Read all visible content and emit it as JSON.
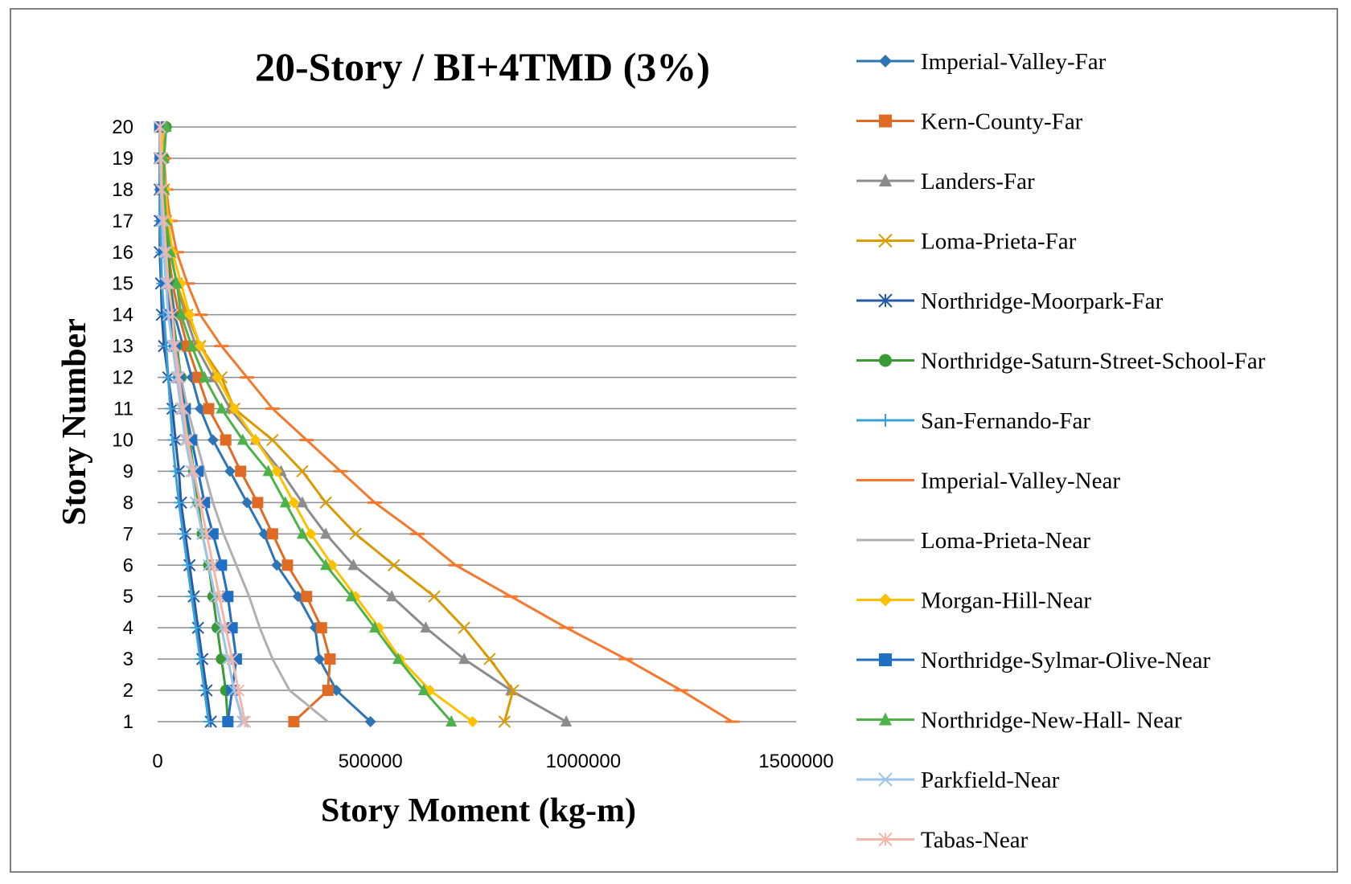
{
  "chart_data": {
    "type": "line",
    "title": "20-Story / BI+4TMD  (3%)",
    "xlabel": "Story Moment (kg-m)",
    "ylabel": "Story Number",
    "xlim": [
      0,
      1500000
    ],
    "ylim": [
      1,
      20
    ],
    "xticks": [
      0,
      500000,
      1000000,
      1500000
    ],
    "xtick_labels": [
      "0",
      "500000",
      "1000000",
      "1500000"
    ],
    "yticks": [
      1,
      2,
      3,
      4,
      5,
      6,
      7,
      8,
      9,
      10,
      11,
      12,
      13,
      14,
      15,
      16,
      17,
      18,
      19,
      20
    ],
    "ytick_labels": [
      "1",
      "2",
      "3",
      "4",
      "5",
      "6",
      "7",
      "8",
      "9",
      "10",
      "11",
      "12",
      "13",
      "14",
      "15",
      "16",
      "17",
      "18",
      "19",
      "20"
    ],
    "grid": "horizontal",
    "legend_position": "right",
    "stories": [
      1,
      2,
      3,
      4,
      5,
      6,
      7,
      8,
      9,
      10,
      11,
      12,
      13,
      14,
      15,
      16,
      17,
      18,
      19,
      20
    ],
    "series": [
      {
        "name": "Imperial-Valley-Far",
        "color": "#2e75b6",
        "marker": "diamond",
        "values": [
          500000,
          420000,
          380000,
          370000,
          330000,
          280000,
          250000,
          210000,
          170000,
          130000,
          100000,
          80000,
          60000,
          40000,
          30000,
          20000,
          15000,
          12000,
          10000,
          10000
        ]
      },
      {
        "name": "Kern-County-Far",
        "color": "#e06b24",
        "marker": "square",
        "values": [
          320000,
          400000,
          405000,
          385000,
          350000,
          305000,
          270000,
          235000,
          195000,
          160000,
          120000,
          95000,
          70000,
          50000,
          35000,
          25000,
          15000,
          10000,
          10000,
          12000
        ]
      },
      {
        "name": "Landers-Far",
        "color": "#8c8c8c",
        "marker": "triangle",
        "values": [
          960000,
          830000,
          720000,
          630000,
          550000,
          460000,
          395000,
          340000,
          290000,
          230000,
          170000,
          130000,
          90000,
          65000,
          45000,
          30000,
          20000,
          15000,
          10000,
          12000
        ]
      },
      {
        "name": "Loma-Prieta-Far",
        "color": "#d99b00",
        "marker": "x",
        "values": [
          815000,
          835000,
          780000,
          720000,
          650000,
          555000,
          465000,
          395000,
          340000,
          270000,
          180000,
          150000,
          100000,
          70000,
          45000,
          30000,
          20000,
          15000,
          10000,
          10000
        ]
      },
      {
        "name": "Northridge-Moorpark-Far",
        "color": "#2559a6",
        "marker": "asterisk",
        "values": [
          125000,
          115000,
          105000,
          95000,
          85000,
          75000,
          65000,
          55000,
          50000,
          42000,
          35000,
          25000,
          15000,
          10000,
          8000,
          5000,
          5000,
          5000,
          5000,
          5000
        ]
      },
      {
        "name": "Northridge-Saturn-Street-School-Far",
        "color": "#3a9a36",
        "marker": "circle",
        "values": [
          165000,
          160000,
          150000,
          140000,
          130000,
          120000,
          105000,
          95000,
          85000,
          75000,
          65000,
          55000,
          45000,
          35000,
          30000,
          25000,
          20000,
          15000,
          15000,
          20000
        ]
      },
      {
        "name": "San-Fernando-Far",
        "color": "#3aa0d8",
        "marker": "plus",
        "values": [
          120000,
          110000,
          100000,
          90000,
          80000,
          70000,
          60000,
          50000,
          42000,
          35000,
          30000,
          25000,
          20000,
          15000,
          10000,
          8000,
          5000,
          5000,
          5000,
          5000
        ]
      },
      {
        "name": "Imperial-Valley-Near",
        "color": "#f4782e",
        "marker": "dash",
        "values": [
          1350000,
          1230000,
          1100000,
          960000,
          830000,
          700000,
          610000,
          510000,
          430000,
          350000,
          270000,
          210000,
          150000,
          100000,
          70000,
          45000,
          30000,
          20000,
          15000,
          10000
        ]
      },
      {
        "name": "Loma-Prieta-Near",
        "color": "#b0b0b0",
        "marker": "none",
        "values": [
          400000,
          310000,
          270000,
          240000,
          215000,
          185000,
          155000,
          130000,
          110000,
          90000,
          70000,
          55000,
          40000,
          30000,
          20000,
          15000,
          10000,
          8000,
          6000,
          5000
        ]
      },
      {
        "name": "Morgan-Hill-Near",
        "color": "#ffc000",
        "marker": "diamond",
        "values": [
          740000,
          640000,
          570000,
          520000,
          465000,
          410000,
          360000,
          320000,
          280000,
          230000,
          180000,
          140000,
          100000,
          75000,
          55000,
          35000,
          25000,
          18000,
          12000,
          10000
        ]
      },
      {
        "name": "Northridge-Sylmar-Olive-Near",
        "color": "#1f6fc5",
        "marker": "square",
        "values": [
          165000,
          175000,
          185000,
          175000,
          165000,
          150000,
          130000,
          110000,
          95000,
          80000,
          65000,
          50000,
          40000,
          30000,
          20000,
          15000,
          10000,
          8000,
          6000,
          5000
        ]
      },
      {
        "name": "Northridge-New-Hall- Near",
        "color": "#4db24a",
        "marker": "triangle",
        "values": [
          690000,
          625000,
          565000,
          510000,
          455000,
          395000,
          340000,
          300000,
          260000,
          200000,
          150000,
          110000,
          80000,
          55000,
          45000,
          30000,
          20000,
          15000,
          15000,
          20000
        ]
      },
      {
        "name": "Parkfield-Near",
        "color": "#9dc3e6",
        "marker": "x",
        "values": [
          200000,
          180000,
          165000,
          150000,
          135000,
          120000,
          105000,
          90000,
          80000,
          65000,
          55000,
          45000,
          35000,
          25000,
          20000,
          15000,
          10000,
          8000,
          6000,
          5000
        ]
      },
      {
        "name": "Tabas-Near",
        "color": "#f4b6a8",
        "marker": "asterisk",
        "values": [
          205000,
          190000,
          175000,
          160000,
          145000,
          130000,
          115000,
          100000,
          85000,
          70000,
          60000,
          50000,
          40000,
          35000,
          25000,
          20000,
          15000,
          10000,
          8000,
          6000
        ]
      }
    ]
  }
}
